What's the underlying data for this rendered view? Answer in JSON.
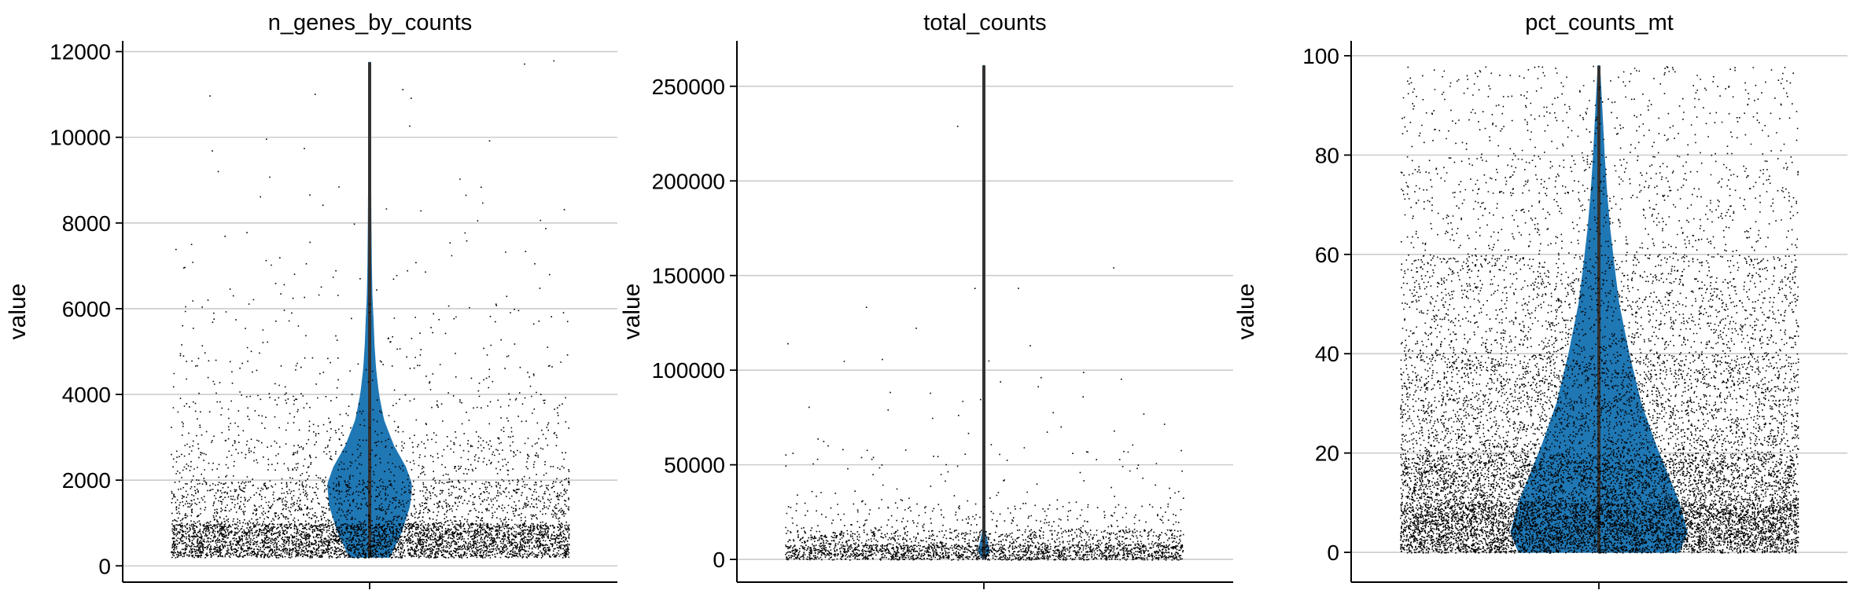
{
  "colors": {
    "violin": "#1f77b4",
    "points": "#000000",
    "grid": "#cccccc",
    "axis": "#000000",
    "median_line": "#333333"
  },
  "chart_data": [
    {
      "type": "violin",
      "title": "n_genes_by_counts",
      "xlabel": "",
      "ylabel": "value",
      "ylim": [
        -380,
        12250
      ],
      "yticks": [
        0,
        2000,
        4000,
        6000,
        8000,
        10000,
        12000
      ],
      "ytick_labels": [
        "0",
        "2000",
        "4000",
        "6000",
        "8000",
        "10000",
        "12000"
      ],
      "grid": true,
      "stripplot": true,
      "data_range": [
        200,
        11750
      ],
      "density_profile": [
        [
          200,
          0.1
        ],
        [
          800,
          0.16
        ],
        [
          1400,
          0.2
        ],
        [
          1900,
          0.21
        ],
        [
          2300,
          0.18
        ],
        [
          2800,
          0.12
        ],
        [
          3400,
          0.07
        ],
        [
          4000,
          0.045
        ],
        [
          4600,
          0.03
        ],
        [
          5200,
          0.022
        ],
        [
          5800,
          0.017
        ],
        [
          6300,
          0.012
        ],
        [
          7000,
          0.009
        ],
        [
          8000,
          0.007
        ],
        [
          9000,
          0.0055
        ],
        [
          10000,
          0.005
        ],
        [
          11000,
          0.0045
        ],
        [
          11750,
          0.004
        ]
      ],
      "point_distribution": [
        [
          200,
          1000,
          1.0
        ],
        [
          1000,
          2000,
          0.25
        ],
        [
          2000,
          3000,
          0.09
        ],
        [
          3000,
          4000,
          0.045
        ],
        [
          4000,
          5000,
          0.022
        ],
        [
          5000,
          6000,
          0.012
        ],
        [
          6000,
          7000,
          0.007
        ],
        [
          7000,
          8000,
          0.004
        ],
        [
          8000,
          9000,
          0.0025
        ],
        [
          9000,
          10000,
          0.0015
        ],
        [
          10000,
          11800,
          0.0008
        ]
      ]
    },
    {
      "type": "violin",
      "title": "total_counts",
      "xlabel": "",
      "ylabel": "value",
      "ylim": [
        -12000,
        274000
      ],
      "yticks": [
        0,
        50000,
        100000,
        150000,
        200000,
        250000
      ],
      "ytick_labels": [
        "0",
        "50000",
        "100000",
        "150000",
        "200000",
        "250000"
      ],
      "grid": true,
      "stripplot": true,
      "data_range": [
        500,
        261000
      ],
      "density_profile": [
        [
          500,
          0.006
        ],
        [
          4000,
          0.03
        ],
        [
          8000,
          0.02
        ],
        [
          15000,
          0.006
        ],
        [
          30000,
          0.004
        ],
        [
          60000,
          0.0035
        ],
        [
          100000,
          0.003
        ],
        [
          150000,
          0.003
        ],
        [
          200000,
          0.003
        ],
        [
          261000,
          0.003
        ]
      ],
      "point_distribution": [
        [
          0,
          8000,
          1.0
        ],
        [
          8000,
          16000,
          0.35
        ],
        [
          16000,
          30000,
          0.07
        ],
        [
          30000,
          60000,
          0.012
        ],
        [
          60000,
          100000,
          0.003
        ],
        [
          100000,
          150000,
          0.0008
        ],
        [
          150000,
          261000,
          0.0001
        ]
      ]
    },
    {
      "type": "violin",
      "title": "pct_counts_mt",
      "xlabel": "",
      "ylabel": "value",
      "ylim": [
        -6,
        103
      ],
      "yticks": [
        0,
        20,
        40,
        60,
        80,
        100
      ],
      "ytick_labels": [
        "0",
        "20",
        "40",
        "60",
        "80",
        "100"
      ],
      "grid": true,
      "stripplot": true,
      "data_range": [
        0,
        98
      ],
      "density_profile": [
        [
          0,
          0.4
        ],
        [
          4,
          0.44
        ],
        [
          10,
          0.4
        ],
        [
          16,
          0.34
        ],
        [
          22,
          0.28
        ],
        [
          30,
          0.21
        ],
        [
          40,
          0.15
        ],
        [
          50,
          0.1
        ],
        [
          58,
          0.075
        ],
        [
          65,
          0.055
        ],
        [
          72,
          0.04
        ],
        [
          80,
          0.027
        ],
        [
          88,
          0.017
        ],
        [
          95,
          0.008
        ],
        [
          98,
          0.004
        ]
      ],
      "point_distribution": [
        [
          0,
          10,
          1.0
        ],
        [
          10,
          20,
          0.55
        ],
        [
          20,
          40,
          0.25
        ],
        [
          40,
          60,
          0.14
        ],
        [
          60,
          80,
          0.06
        ],
        [
          80,
          98,
          0.035
        ]
      ]
    }
  ]
}
